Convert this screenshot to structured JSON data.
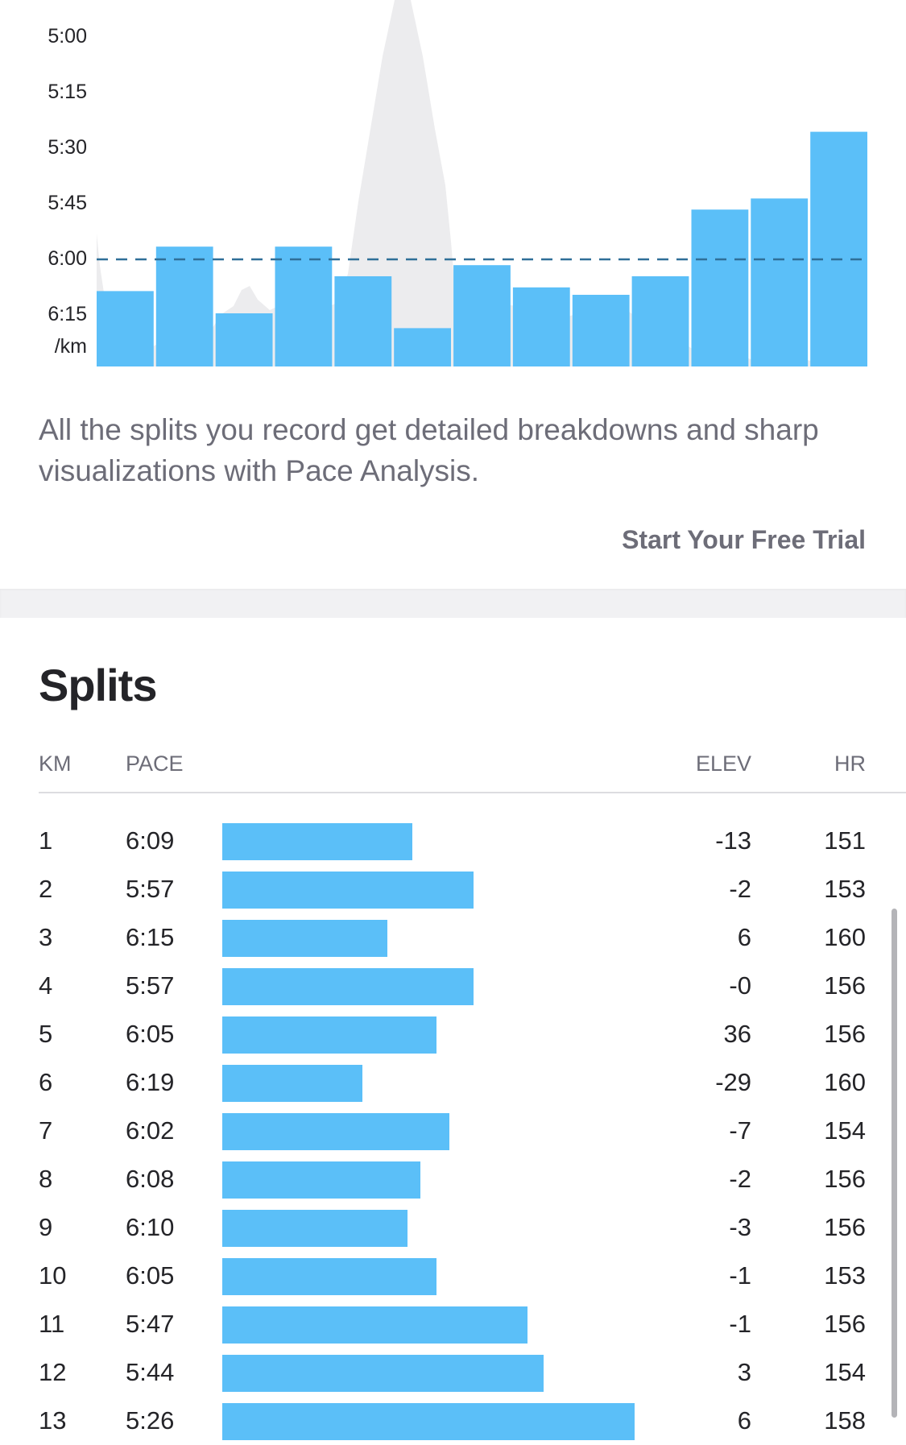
{
  "chart_data": {
    "type": "bar",
    "y_unit_label": "/km",
    "y_ticks": [
      "5:00",
      "5:15",
      "5:30",
      "5:45",
      "6:00",
      "6:15"
    ],
    "ylim_seconds_per_km": [
      300,
      390
    ],
    "y_inverted": true,
    "average_pace_line": "6:00",
    "bar_color": "#5bbff8",
    "elevation_fill_color": "#ececee",
    "average_line_color": "#2f6f98",
    "categories": [
      "1",
      "2",
      "3",
      "4",
      "5",
      "6",
      "7",
      "8",
      "9",
      "10",
      "11",
      "12",
      "13"
    ],
    "values": [
      "6:09",
      "5:57",
      "6:15",
      "5:57",
      "6:05",
      "6:19",
      "6:02",
      "6:08",
      "6:10",
      "6:05",
      "5:47",
      "5:44",
      "5:26"
    ],
    "values_seconds": [
      369,
      357,
      375,
      357,
      365,
      379,
      362,
      368,
      370,
      365,
      347,
      344,
      326
    ]
  },
  "promo": {
    "text": "All the splits you record get detailed breakdowns and sharp visualizations with Pace Analysis.",
    "cta": "Start Your Free Trial"
  },
  "splits": {
    "title": "Splits",
    "columns": {
      "km": "KM",
      "pace": "PACE",
      "elev": "ELEV",
      "hr": "HR"
    },
    "rows": [
      {
        "km": "1",
        "pace": "6:09",
        "elev": "-13",
        "hr": "151",
        "bar": 0.46
      },
      {
        "km": "2",
        "pace": "5:57",
        "elev": "-2",
        "hr": "153",
        "bar": 0.61
      },
      {
        "km": "3",
        "pace": "6:15",
        "elev": "6",
        "hr": "160",
        "bar": 0.4
      },
      {
        "km": "4",
        "pace": "5:57",
        "elev": "-0",
        "hr": "156",
        "bar": 0.61
      },
      {
        "km": "5",
        "pace": "6:05",
        "elev": "36",
        "hr": "156",
        "bar": 0.52
      },
      {
        "km": "6",
        "pace": "6:19",
        "elev": "-29",
        "hr": "160",
        "bar": 0.34
      },
      {
        "km": "7",
        "pace": "6:02",
        "elev": "-7",
        "hr": "154",
        "bar": 0.55
      },
      {
        "km": "8",
        "pace": "6:08",
        "elev": "-2",
        "hr": "156",
        "bar": 0.48
      },
      {
        "km": "9",
        "pace": "6:10",
        "elev": "-3",
        "hr": "156",
        "bar": 0.45
      },
      {
        "km": "10",
        "pace": "6:05",
        "elev": "-1",
        "hr": "153",
        "bar": 0.52
      },
      {
        "km": "11",
        "pace": "5:47",
        "elev": "-1",
        "hr": "156",
        "bar": 0.74
      },
      {
        "km": "12",
        "pace": "5:44",
        "elev": "3",
        "hr": "154",
        "bar": 0.78
      },
      {
        "km": "13",
        "pace": "5:26",
        "elev": "6",
        "hr": "158",
        "bar": 1.0
      }
    ]
  }
}
